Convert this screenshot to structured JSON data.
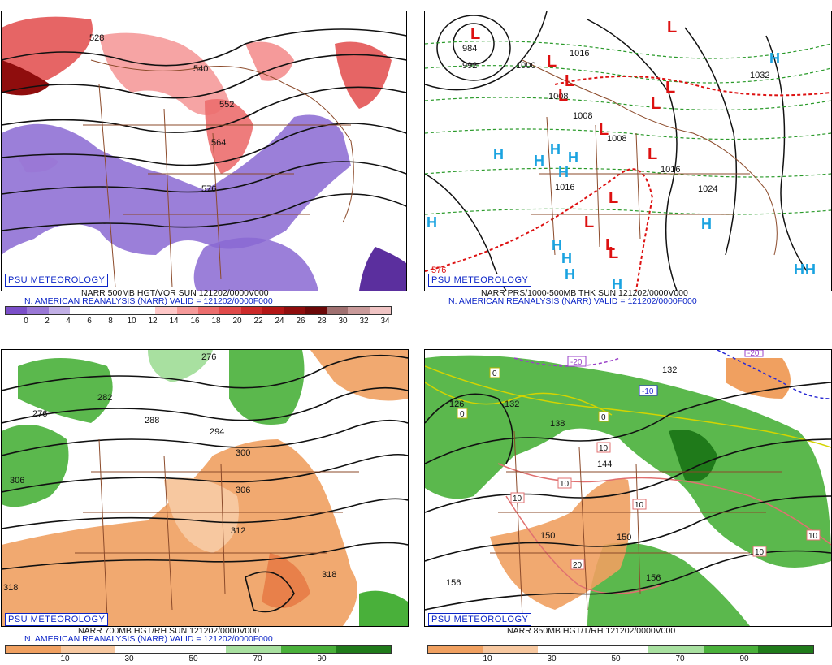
{
  "panels": {
    "tl": {
      "badge": "PSU METEOROLOGY",
      "caption1": "NARR 500MB HGT/VOR SUN 121202/0000V000",
      "caption2": "N. AMERICAN REANALYSIS (NARR) VALID = 121202/0000F000",
      "contour_labels": [
        "528",
        "540",
        "552",
        "564",
        "576"
      ],
      "colorbar_ticks": [
        "0",
        "2",
        "4",
        "6",
        "8",
        "10",
        "12",
        "14",
        "16",
        "18",
        "20",
        "22",
        "24",
        "26",
        "28",
        "30",
        "32",
        "34"
      ],
      "colorbar_colors": [
        "#7b4fc9",
        "#9a78d6",
        "#c2b0e6",
        "#ffffff",
        "#ffffff",
        "#ffffff",
        "#ffffff",
        "#ffc8c8",
        "#f59a9a",
        "#ec6e6e",
        "#e04a4a",
        "#cc2a2a",
        "#b31616",
        "#8f0d0d",
        "#6b0707",
        "#a07070",
        "#c99a9a",
        "#f0c4c4"
      ]
    },
    "tr": {
      "badge": "PSU METEOROLOGY",
      "caption1": "NARR PRS/1000-500MB THK SUN 121202/0000V000",
      "caption2": "N. AMERICAN REANALYSIS (NARR) VALID = 121202/0000F000",
      "isobar_labels": [
        "984",
        "992",
        "1000",
        "1008",
        "1016",
        "1024",
        "1032",
        "1008",
        "1016",
        "1016",
        "1008",
        "576"
      ],
      "low_symbol": "L",
      "high_symbol": "H"
    },
    "bl": {
      "badge": "PSU METEOROLOGY",
      "caption1": "NARR 700MB HGT/RH SUN 121202/0000V000",
      "caption2": "N. AMERICAN REANALYSIS (NARR) VALID = 121202/0000F000",
      "contour_labels": [
        "276",
        "282",
        "288",
        "294",
        "300",
        "306",
        "312",
        "318",
        "318",
        "276",
        "306"
      ],
      "colorbar_ticks": [
        "10",
        "30",
        "50",
        "70",
        "90"
      ],
      "colorbar_colors": [
        "#f0a060",
        "#f7c8a0",
        "#ffffff",
        "#ffffff",
        "#a8e0a0",
        "#49b03a",
        "#1f7a1a"
      ]
    },
    "br": {
      "badge": "PSU METEOROLOGY",
      "caption1": "NARR 850MB HGT/T/RH 121202/0000V000",
      "contour_labels": [
        "126",
        "132",
        "138",
        "144",
        "150",
        "156",
        "156",
        "150",
        "132"
      ],
      "temp_labels": [
        "-20",
        "-10",
        "0",
        "0",
        "0",
        "10",
        "10",
        "10",
        "10",
        "20",
        "10",
        "10",
        "-20"
      ],
      "colorbar_ticks": [
        "10",
        "30",
        "50",
        "70",
        "90"
      ],
      "colorbar_colors": [
        "#f0a060",
        "#f7c8a0",
        "#ffffff",
        "#ffffff",
        "#a8e0a0",
        "#49b03a",
        "#1f7a1a"
      ]
    }
  },
  "colors": {
    "badge_blue": "#0b24c7",
    "low_red": "#dd1111",
    "high_cyan": "#1aa3e0",
    "border_brown": "#8b4a2a",
    "dry_orange": "#f0a060",
    "moist_green": "#49b03a",
    "vort_purple": "#8a68d2",
    "vort_red": "#e24a4a"
  }
}
